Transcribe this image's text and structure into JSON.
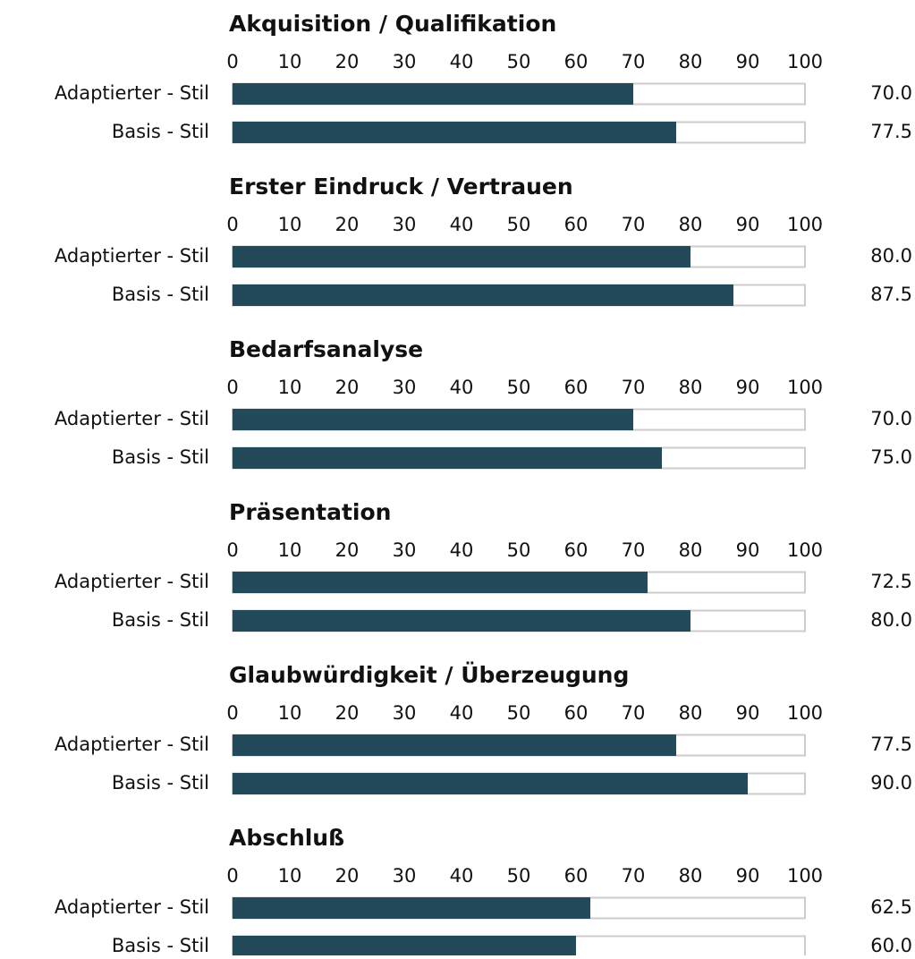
{
  "chart_data": [
    {
      "type": "bar",
      "orientation": "horizontal",
      "title": "Akquisition / Qualifikation",
      "categories": [
        "Adaptierter - Stil",
        "Basis - Stil"
      ],
      "values": [
        70,
        77.5
      ],
      "value_labels": [
        "70.0",
        "77.5"
      ],
      "color": "#234a5a",
      "xlim": [
        0,
        100
      ],
      "xticks": [
        0,
        10,
        20,
        30,
        40,
        50,
        60,
        70,
        80,
        90,
        100
      ]
    },
    {
      "type": "bar",
      "orientation": "horizontal",
      "title": "Erster Eindruck / Vertrauen",
      "categories": [
        "Adaptierter - Stil",
        "Basis - Stil"
      ],
      "values": [
        80,
        87.5
      ],
      "value_labels": [
        "80.0",
        "87.5"
      ],
      "color": "#234a5a",
      "xlim": [
        0,
        100
      ],
      "xticks": [
        0,
        10,
        20,
        30,
        40,
        50,
        60,
        70,
        80,
        90,
        100
      ]
    },
    {
      "type": "bar",
      "orientation": "horizontal",
      "title": "Bedarfsanalyse",
      "categories": [
        "Adaptierter - Stil",
        "Basis - Stil"
      ],
      "values": [
        70,
        75
      ],
      "value_labels": [
        "70.0",
        "75.0"
      ],
      "color": "#234a5a",
      "xlim": [
        0,
        100
      ],
      "xticks": [
        0,
        10,
        20,
        30,
        40,
        50,
        60,
        70,
        80,
        90,
        100
      ]
    },
    {
      "type": "bar",
      "orientation": "horizontal",
      "title": "Präsentation",
      "categories": [
        "Adaptierter - Stil",
        "Basis - Stil"
      ],
      "values": [
        72.5,
        80
      ],
      "value_labels": [
        "72.5",
        "80.0"
      ],
      "color": "#234a5a",
      "xlim": [
        0,
        100
      ],
      "xticks": [
        0,
        10,
        20,
        30,
        40,
        50,
        60,
        70,
        80,
        90,
        100
      ]
    },
    {
      "type": "bar",
      "orientation": "horizontal",
      "title": "Glaubwürdigkeit / Überzeugung",
      "categories": [
        "Adaptierter - Stil",
        "Basis - Stil"
      ],
      "values": [
        77.5,
        90
      ],
      "value_labels": [
        "77.5",
        "90.0"
      ],
      "color": "#234a5a",
      "xlim": [
        0,
        100
      ],
      "xticks": [
        0,
        10,
        20,
        30,
        40,
        50,
        60,
        70,
        80,
        90,
        100
      ]
    },
    {
      "type": "bar",
      "orientation": "horizontal",
      "title": "Abschluß",
      "categories": [
        "Adaptierter - Stil",
        "Basis - Stil"
      ],
      "values": [
        62.5,
        60
      ],
      "value_labels": [
        "62.5",
        "60.0"
      ],
      "color": "#234a5a",
      "xlim": [
        0,
        100
      ],
      "xticks": [
        0,
        10,
        20,
        30,
        40,
        50,
        60,
        70,
        80,
        90,
        100
      ]
    }
  ]
}
